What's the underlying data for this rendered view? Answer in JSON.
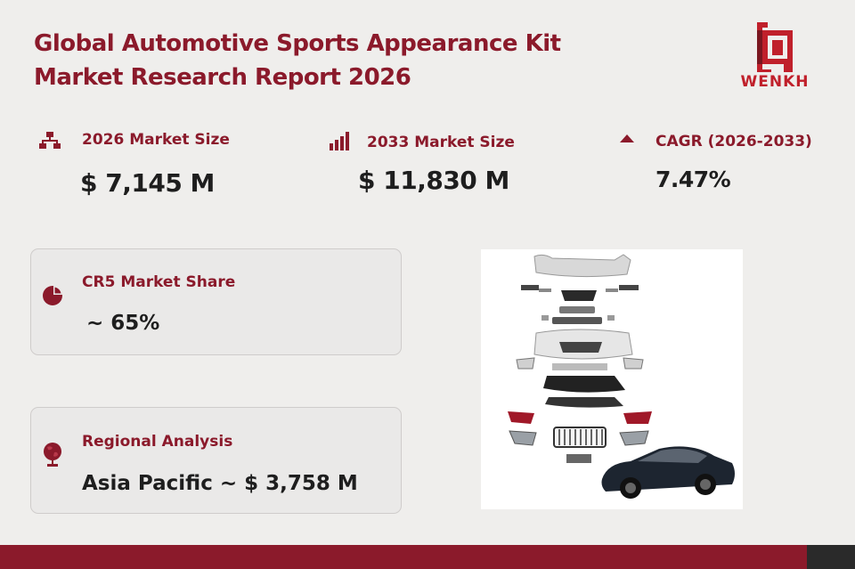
{
  "report": {
    "title_line1": "Global Automotive Sports Appearance Kit",
    "title_line2": "Market Research Report 2026"
  },
  "brand": {
    "logo_text": "WENKH",
    "color": "#c0202b"
  },
  "colors": {
    "accent": "#8b1a2b",
    "background": "#efeeec",
    "text": "#1e1e1e"
  },
  "stats": [
    {
      "label": "2026 Market Size",
      "value": "$ 7,145 M",
      "icon": "hierarchy-icon"
    },
    {
      "label": "2033 Market Size",
      "value": "$ 11,830 M",
      "icon": "bar-chart-icon"
    },
    {
      "label": "CAGR (2026-2033)",
      "value": "7.47%",
      "icon": "triangle-up-icon"
    }
  ],
  "cards": [
    {
      "label": "CR5 Market Share",
      "value": "~ 65%",
      "icon": "pie-chart-icon"
    },
    {
      "label": "Regional Analysis",
      "value": "Asia Pacific ~ $ 3,758 M",
      "icon": "globe-icon"
    }
  ],
  "product_image": {
    "icon": "body-kit-parts-image"
  }
}
